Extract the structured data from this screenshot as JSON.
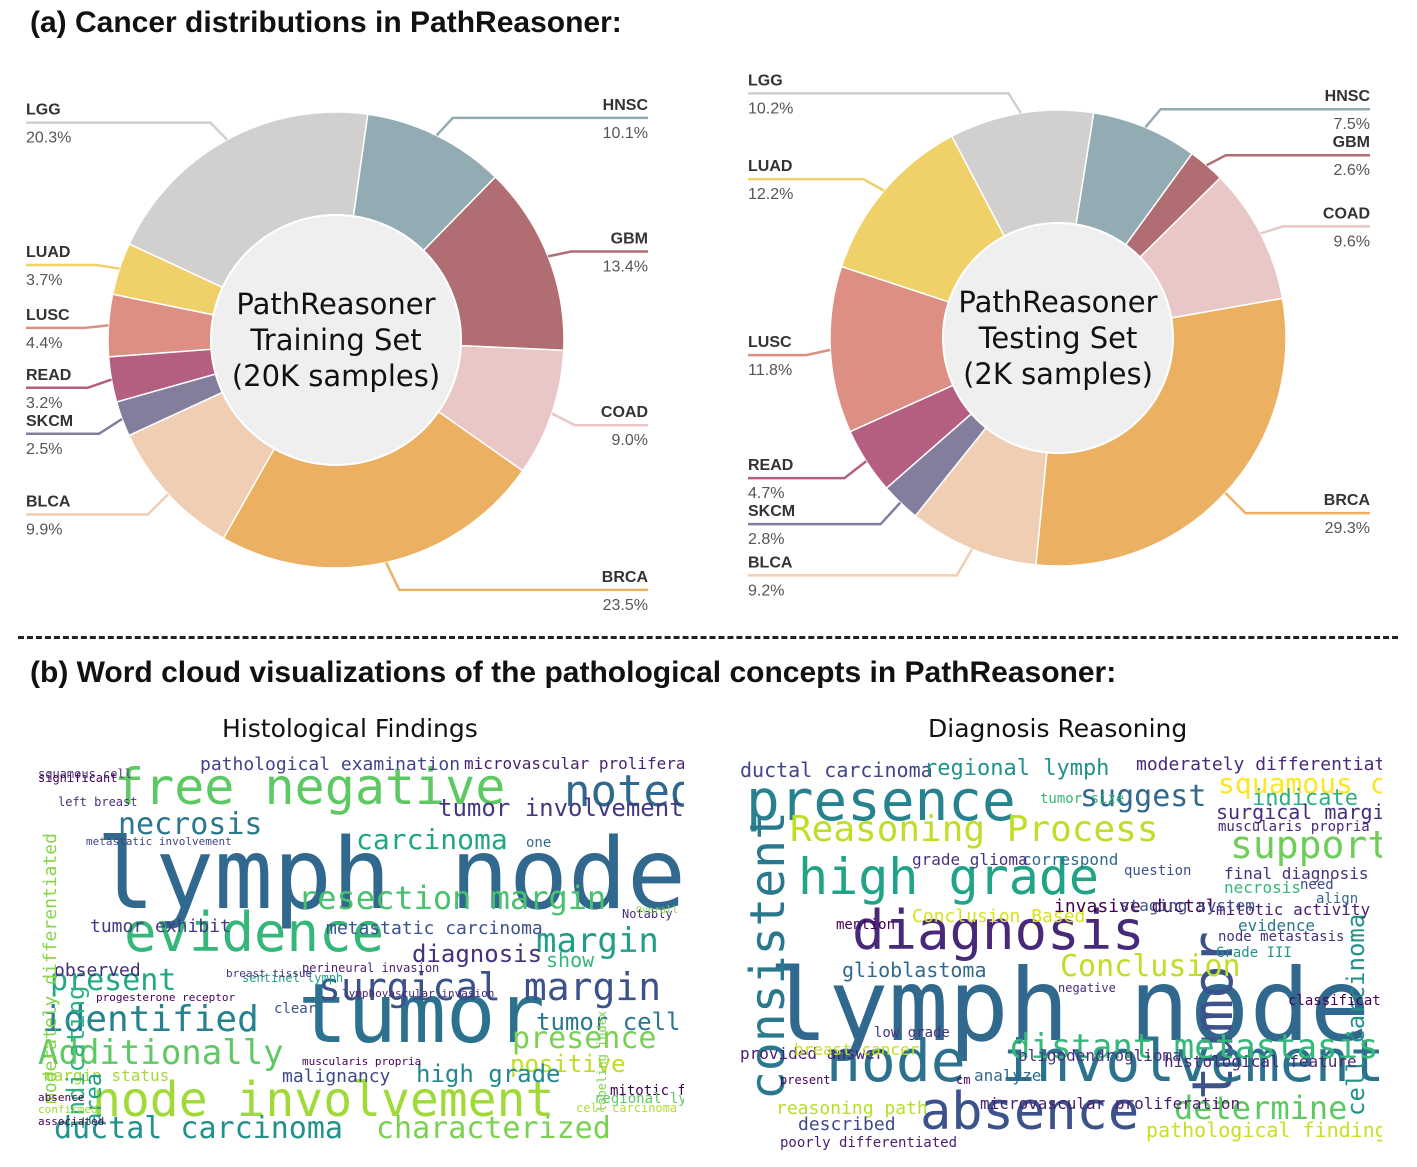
{
  "heading_a": "(a) Cancer distributions in PathReasoner:",
  "heading_b": "(b) Word cloud visualizations of the pathological concepts in PathReasoner:",
  "chart_data": [
    {
      "type": "pie",
      "subtype": "donut",
      "title": "Cancer distributions in PathReasoner",
      "center_label": [
        "PathReasoner",
        "Training Set",
        "(20K samples)"
      ],
      "slices": [
        {
          "label": "HNSC",
          "value": 10.1,
          "display": "10.1%",
          "color": "#93abb3"
        },
        {
          "label": "GBM",
          "value": 13.4,
          "display": "13.4%",
          "color": "#b06e72"
        },
        {
          "label": "COAD",
          "value": 9.0,
          "display": "9.0%",
          "color": "#e8c7c6"
        },
        {
          "label": "BRCA",
          "value": 23.5,
          "display": "23.5%",
          "color": "#ebb061"
        },
        {
          "label": "BLCA",
          "value": 9.9,
          "display": "9.9%",
          "color": "#f0ceb3"
        },
        {
          "label": "SKCM",
          "value": 2.5,
          "display": "2.5%",
          "color": "#837e9c"
        },
        {
          "label": "READ",
          "value": 3.2,
          "display": "3.2%",
          "color": "#b45f82"
        },
        {
          "label": "LUSC",
          "value": 4.4,
          "display": "4.4%",
          "color": "#dc8f82"
        },
        {
          "label": "LUAD",
          "value": 3.7,
          "display": "3.7%",
          "color": "#f0d069"
        },
        {
          "label": "LGG",
          "value": 20.3,
          "display": "20.3%",
          "color": "#d2d0cf"
        }
      ]
    },
    {
      "type": "pie",
      "subtype": "donut",
      "title": "Cancer distributions in PathReasoner",
      "center_label": [
        "PathReasoner",
        "Testing Set",
        "(2K samples)"
      ],
      "slices": [
        {
          "label": "HNSC",
          "value": 7.5,
          "display": "7.5%",
          "color": "#93abb3"
        },
        {
          "label": "GBM",
          "value": 2.6,
          "display": "2.6%",
          "color": "#b06e72"
        },
        {
          "label": "COAD",
          "value": 9.6,
          "display": "9.6%",
          "color": "#e8c7c6"
        },
        {
          "label": "BRCA",
          "value": 29.3,
          "display": "29.3%",
          "color": "#ebb061"
        },
        {
          "label": "BLCA",
          "value": 9.2,
          "display": "9.2%",
          "color": "#f0ceb3"
        },
        {
          "label": "SKCM",
          "value": 2.8,
          "display": "2.8%",
          "color": "#837e9c"
        },
        {
          "label": "READ",
          "value": 4.7,
          "display": "4.7%",
          "color": "#b45f82"
        },
        {
          "label": "LUSC",
          "value": 11.8,
          "display": "11.8%",
          "color": "#dc8f82"
        },
        {
          "label": "LUAD",
          "value": 12.2,
          "display": "12.2%",
          "color": "#f0d069"
        },
        {
          "label": "LGG",
          "value": 10.2,
          "display": "10.2%",
          "color": "#d2d0cf"
        }
      ]
    }
  ],
  "wordclouds": [
    {
      "title": "Histological Findings",
      "words": [
        {
          "text": "lymph node",
          "color": "#31688e"
        },
        {
          "text": "tumor",
          "color": "#2c728e"
        },
        {
          "text": "free negative",
          "color": "#5ec962"
        },
        {
          "text": "evidence",
          "color": "#35b779"
        },
        {
          "text": "node involvement",
          "color": "#a0da39"
        },
        {
          "text": "resection margin",
          "color": "#4ac16d"
        },
        {
          "text": "surgical margin",
          "color": "#3b528b"
        },
        {
          "text": "identified",
          "color": "#26828e"
        },
        {
          "text": "Additionally",
          "color": "#5ec962"
        },
        {
          "text": "ductal carcinoma",
          "color": "#21918c"
        },
        {
          "text": "characterized",
          "color": "#7ad151"
        },
        {
          "text": "necrosis",
          "color": "#2a788e"
        },
        {
          "text": "carcinoma",
          "color": "#21a685"
        },
        {
          "text": "noted",
          "color": "#31688e"
        },
        {
          "text": "tumor involvement",
          "color": "#443983"
        },
        {
          "text": "margin",
          "color": "#1f9e89"
        },
        {
          "text": "present",
          "color": "#22a884"
        },
        {
          "text": "presence",
          "color": "#7ad151"
        },
        {
          "text": "positive",
          "color": "#bddf26"
        },
        {
          "text": "tumor cell",
          "color": "#2a788e"
        },
        {
          "text": "high grade",
          "color": "#23898e"
        },
        {
          "text": "diagnosis",
          "color": "#472f7d"
        },
        {
          "text": "show",
          "color": "#35b779"
        },
        {
          "text": "pathological examination",
          "color": "#414487"
        },
        {
          "text": "microvascular proliferation",
          "color": "#481f70"
        },
        {
          "text": "metastatic carcinoma",
          "color": "#3b528b"
        },
        {
          "text": "tumor exhibit",
          "color": "#443983"
        },
        {
          "text": "observed",
          "color": "#472d7b"
        },
        {
          "text": "margin status",
          "color": "#a0da39"
        },
        {
          "text": "area",
          "color": "#1f9e89"
        },
        {
          "text": "indicating",
          "color": "#2db27d"
        },
        {
          "text": "moderately differentiated",
          "color": "#86d549"
        },
        {
          "text": "malignancy",
          "color": "#3e4989"
        },
        {
          "text": "mitotic figure",
          "color": "#440154"
        },
        {
          "text": "regional lymph",
          "color": "#5ec962"
        },
        {
          "text": "sentinel lymph",
          "color": "#20a386"
        },
        {
          "text": "clear",
          "color": "#3b528b"
        },
        {
          "text": "cell carcinoma",
          "color": "#b5de2b"
        },
        {
          "text": "squamous cell",
          "color": "#46327e"
        },
        {
          "text": "significant",
          "color": "#440154"
        },
        {
          "text": "left breast",
          "color": "#472f7d"
        },
        {
          "text": "metastatic involvement",
          "color": "#414487"
        },
        {
          "text": "perineural invasion",
          "color": "#481f70"
        },
        {
          "text": "breast tissue",
          "color": "#46327e"
        },
        {
          "text": "progesterone receptor",
          "color": "#440154"
        },
        {
          "text": "lymphovascular invasion",
          "color": "#482878"
        },
        {
          "text": "muscularis propria",
          "color": "#440154"
        },
        {
          "text": "one",
          "color": "#31688e"
        },
        {
          "text": "Notably",
          "color": "#472d7b"
        },
        {
          "text": "labeling index",
          "color": "#7ad151"
        },
        {
          "text": "Overall",
          "color": "#86d549"
        },
        {
          "text": "absence",
          "color": "#440154"
        },
        {
          "text": "confirmed",
          "color": "#a0da39"
        },
        {
          "text": "associated",
          "color": "#440154"
        }
      ]
    },
    {
      "title": "Diagnosis Reasoning",
      "words": [
        {
          "text": "lymph node",
          "color": "#31688e"
        },
        {
          "text": "presence",
          "color": "#26828e"
        },
        {
          "text": "tumor",
          "color": "#3b528b"
        },
        {
          "text": "Reasoning Process",
          "color": "#bddf26"
        },
        {
          "text": "high grade",
          "color": "#20a386"
        },
        {
          "text": "diagnosis",
          "color": "#482878"
        },
        {
          "text": "consistent",
          "color": "#2a788e"
        },
        {
          "text": "node involvement",
          "color": "#2c728e"
        },
        {
          "text": "absence",
          "color": "#3b528b"
        },
        {
          "text": "distant metastasis",
          "color": "#35b779"
        },
        {
          "text": "determine",
          "color": "#5ec962"
        },
        {
          "text": "Conclusion",
          "color": "#bddf26"
        },
        {
          "text": "support",
          "color": "#6ece58"
        },
        {
          "text": "cell carcinoma",
          "color": "#21918c"
        },
        {
          "text": "squamous cell",
          "color": "#fde725"
        },
        {
          "text": "suggest",
          "color": "#31688e"
        },
        {
          "text": "ductal carcinoma",
          "color": "#414487"
        },
        {
          "text": "regional lymph",
          "color": "#21918c"
        },
        {
          "text": "surgical margin",
          "color": "#472d7b"
        },
        {
          "text": "indicate",
          "color": "#2db27d"
        },
        {
          "text": "glioblastoma",
          "color": "#31688e"
        },
        {
          "text": "moderately differentiated",
          "color": "#482878"
        },
        {
          "text": "pathological finding",
          "color": "#c8e020"
        },
        {
          "text": "reasoning path",
          "color": "#b5de2b"
        },
        {
          "text": "described",
          "color": "#3e4989"
        },
        {
          "text": "microvascular proliferation",
          "color": "#481f70"
        },
        {
          "text": "Conclusion Based",
          "color": "#d8e219"
        },
        {
          "text": "invasive ductal",
          "color": "#440154"
        },
        {
          "text": "mitotic activity",
          "color": "#481f70"
        },
        {
          "text": "node metastasis",
          "color": "#46327e"
        },
        {
          "text": "staging system",
          "color": "#3b528b"
        },
        {
          "text": "final diagnosis",
          "color": "#472f7d"
        },
        {
          "text": "histological feature",
          "color": "#482878"
        },
        {
          "text": "correspond",
          "color": "#31688e"
        },
        {
          "text": "grade glioma",
          "color": "#46327e"
        },
        {
          "text": "low grade",
          "color": "#46327e"
        },
        {
          "text": "provided answer",
          "color": "#481f70"
        },
        {
          "text": "mention",
          "color": "#440154"
        },
        {
          "text": "evidence",
          "color": "#2a788e"
        },
        {
          "text": "necrosis",
          "color": "#35b779"
        },
        {
          "text": "need",
          "color": "#3e4989"
        },
        {
          "text": "align",
          "color": "#31688e"
        },
        {
          "text": "question",
          "color": "#3b528b"
        },
        {
          "text": "Grade III",
          "color": "#21918c"
        },
        {
          "text": "muscularis propria",
          "color": "#482878"
        },
        {
          "text": "tumor size",
          "color": "#35b779"
        },
        {
          "text": "breast cancer",
          "color": "#c8e020"
        },
        {
          "text": "poorly differentiated",
          "color": "#481f70"
        },
        {
          "text": "oligodendroglioma",
          "color": "#46327e"
        },
        {
          "text": "analyze",
          "color": "#31688e"
        },
        {
          "text": "classification",
          "color": "#440154"
        },
        {
          "text": "negative",
          "color": "#472d7b"
        },
        {
          "text": "cm",
          "color": "#440154"
        },
        {
          "text": "present",
          "color": "#440154"
        }
      ]
    }
  ]
}
